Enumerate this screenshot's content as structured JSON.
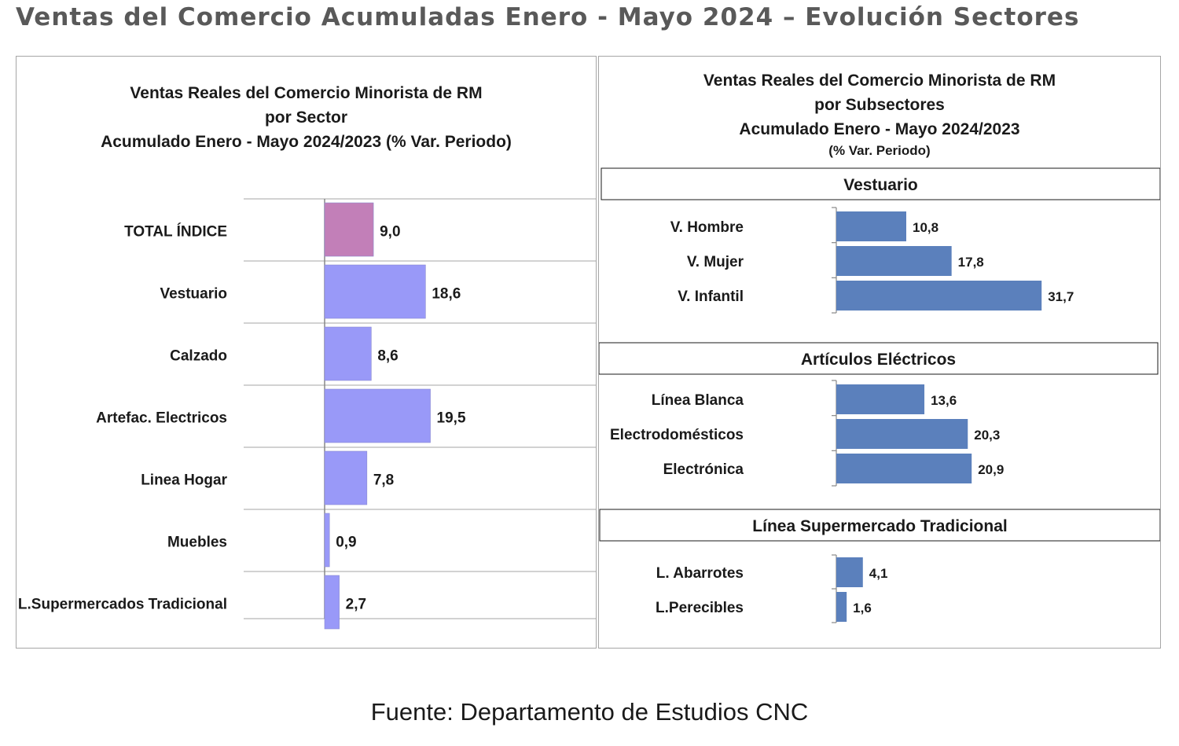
{
  "page": {
    "title": "Ventas del Comercio Acumuladas Enero - Mayo 2024 – Evolución Sectores",
    "footer": "Fuente: Departamento de Estudios CNC"
  },
  "chart_data": [
    {
      "type": "bar",
      "orientation": "horizontal",
      "title_lines": [
        "Ventas Reales del Comercio Minorista de RM",
        "por Sector",
        "Acumulado Enero - Mayo  2024/2023 (% Var. Periodo)"
      ],
      "categories": [
        "TOTAL ÍNDICE",
        "Vestuario",
        "Calzado",
        "Artefac. Electricos",
        "Linea Hogar",
        "Muebles",
        "L.Supermercados Tradicional"
      ],
      "values": [
        9.0,
        18.6,
        8.6,
        19.5,
        7.8,
        0.9,
        2.7
      ],
      "value_labels": [
        "9,0",
        "18,6",
        "8,6",
        "19,5",
        "7,8",
        "0,9",
        "2,7"
      ],
      "colors": [
        "#c27fb8",
        "#9999f8",
        "#9999f8",
        "#9999f8",
        "#9999f8",
        "#9999f8",
        "#9999f8"
      ],
      "xlim": [
        0,
        50
      ],
      "grid": "horizontal"
    },
    {
      "type": "bar",
      "orientation": "horizontal",
      "title_lines": [
        "Ventas Reales del Comercio Minorista de RM",
        "por Subsectores",
        "Acumulado Enero - Mayo  2024/2023",
        "(% Var. Periodo)"
      ],
      "bar_color": "#5b80bc",
      "xlim": [
        0,
        50
      ],
      "groups": [
        {
          "name": "Vestuario",
          "categories": [
            "V. Hombre",
            "V. Mujer",
            "V. Infantil"
          ],
          "values": [
            10.8,
            17.8,
            31.7
          ],
          "value_labels": [
            "10,8",
            "17,8",
            "31,7"
          ]
        },
        {
          "name": "Artículos Eléctricos",
          "categories": [
            "Línea Blanca",
            "Electrodomésticos",
            "Electrónica"
          ],
          "values": [
            13.6,
            20.3,
            20.9
          ],
          "value_labels": [
            "13,6",
            "20,3",
            "20,9"
          ]
        },
        {
          "name": "Línea  Supermercado Tradicional",
          "categories": [
            "L. Abarrotes",
            "L.Perecibles"
          ],
          "values": [
            4.1,
            1.6
          ],
          "value_labels": [
            "4,1",
            "1,6"
          ]
        }
      ]
    }
  ]
}
